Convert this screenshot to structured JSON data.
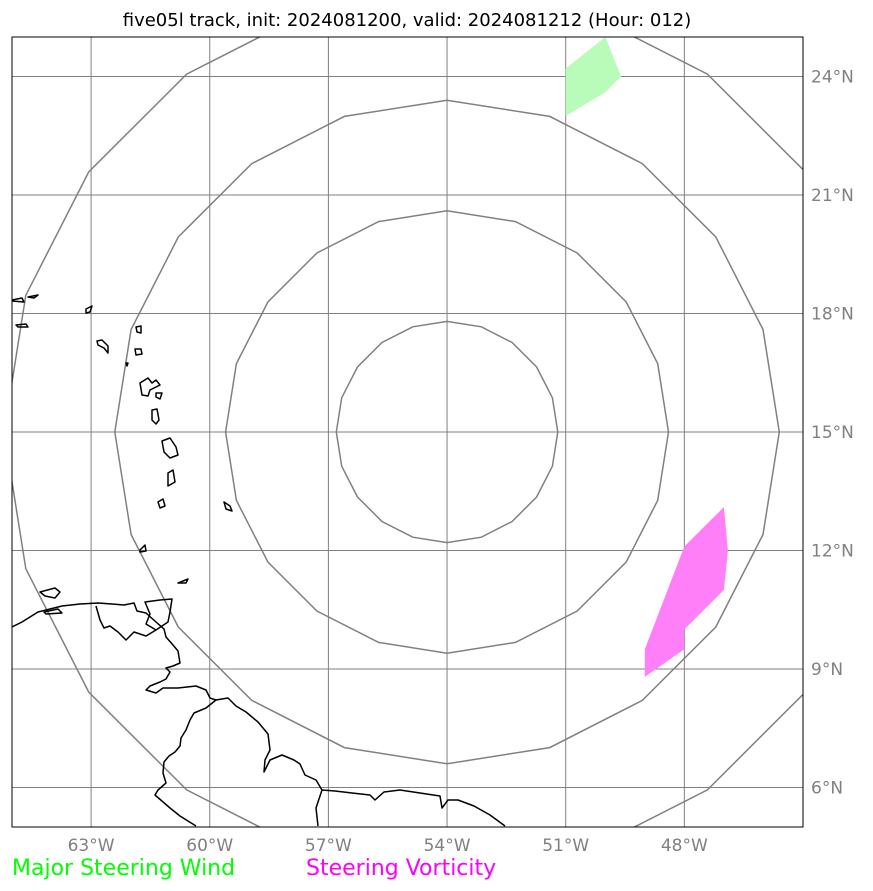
{
  "title": "five05l track, init: 2024081200, valid: 2024081212 (Hour: 012)",
  "map": {
    "lon_range": [
      -65,
      -45
    ],
    "lat_range": [
      5,
      25
    ],
    "lon_ticks": [
      -63,
      -60,
      -57,
      -54,
      -51,
      -48
    ],
    "lat_ticks": [
      6,
      9,
      12,
      15,
      18,
      21,
      24
    ],
    "lon_tick_labels": [
      "63°W",
      "60°W",
      "57°W",
      "54°W",
      "51°W",
      "48°W"
    ],
    "lat_tick_labels": [
      "6°N",
      "9°N",
      "12°N",
      "15°N",
      "18°N",
      "21°N",
      "24°N"
    ],
    "gridlines": true,
    "range_rings": {
      "center": {
        "lon": -54.0,
        "lat": 15.0
      },
      "radii_deg": [
        2.8,
        5.6,
        8.4,
        11.2
      ]
    },
    "colors": {
      "grid": "#808080",
      "coast": "#000000",
      "wind_region": "#b9fbb9",
      "vorticity_region": "#ff7ff9"
    },
    "regions": [
      {
        "name": "Major Steering Wind",
        "points": [
          [
            -51.0,
            24.2
          ],
          [
            -50.0,
            25.0
          ],
          [
            -49.6,
            24.0
          ],
          [
            -50.0,
            23.6
          ],
          [
            -51.0,
            23.0
          ]
        ]
      },
      {
        "name": "Steering Vorticity",
        "points": [
          [
            -49.0,
            9.5
          ],
          [
            -48.0,
            12.1
          ],
          [
            -47.0,
            13.1
          ],
          [
            -46.9,
            12.0
          ],
          [
            -47.0,
            11.0
          ],
          [
            -48.0,
            10.0
          ],
          [
            -48.0,
            9.5
          ],
          [
            -49.0,
            8.8
          ]
        ]
      }
    ]
  },
  "legend": {
    "wind_label": "Major Steering Wind",
    "wind_color": "#00ff00",
    "vorticity_label": "Steering Vorticity",
    "vorticity_color": "#ff00ff"
  }
}
